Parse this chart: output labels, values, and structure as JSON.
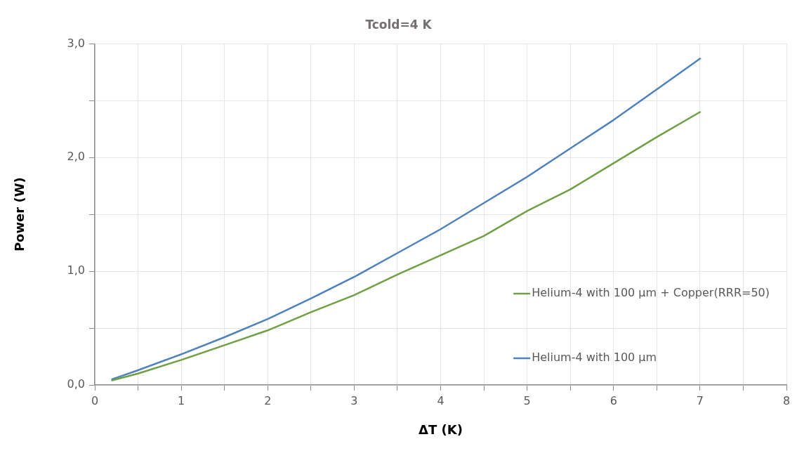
{
  "chart_data": {
    "type": "line",
    "title": "Tcold=4 K",
    "xlabel": "ΔT (K)",
    "ylabel": "Power (W)",
    "x": [
      0.2,
      0.5,
      1,
      1.5,
      2,
      2.5,
      3,
      3.5,
      4,
      4.5,
      5,
      5.5,
      6,
      6.5,
      7
    ],
    "series": [
      {
        "name": "Helium-4 with 100 µm + Copper(RRR=50)",
        "color": "#70a044",
        "values": [
          0.04,
          0.1,
          0.22,
          0.35,
          0.48,
          0.64,
          0.79,
          0.97,
          1.14,
          1.31,
          1.53,
          1.72,
          1.95,
          2.18,
          2.4
        ]
      },
      {
        "name": "Helium-4 with 100 µm",
        "color": "#4f81bd",
        "values": [
          0.05,
          0.13,
          0.27,
          0.42,
          0.58,
          0.76,
          0.95,
          1.16,
          1.37,
          1.6,
          1.83,
          2.08,
          2.33,
          2.6,
          2.87
        ]
      }
    ],
    "xlim": [
      0,
      8
    ],
    "xticks": [
      0,
      {
        "value": 0.5,
        "label": null
      },
      1,
      {
        "value": 1.5,
        "label": null
      },
      2,
      {
        "value": 2.5,
        "label": null
      },
      3,
      {
        "value": 3.5,
        "label": null
      },
      4,
      {
        "value": 4.5,
        "label": null
      },
      5,
      {
        "value": 5.5,
        "label": null
      },
      6,
      {
        "value": 6.5,
        "label": null
      },
      7,
      {
        "value": 7.5,
        "label": null
      },
      8
    ],
    "ylim": [
      0,
      3
    ],
    "yticks": [
      {
        "value": 0,
        "label": "0,0"
      },
      {
        "value": 0.5,
        "label": null
      },
      {
        "value": 1,
        "label": "1,0"
      },
      {
        "value": 1.5,
        "label": null
      },
      {
        "value": 2,
        "label": "2,0"
      },
      {
        "value": 2.5,
        "label": null
      },
      {
        "value": 3,
        "label": "3,0"
      }
    ],
    "grid": true,
    "legend": "bottom right",
    "marker": "none",
    "line_style": "solid"
  }
}
